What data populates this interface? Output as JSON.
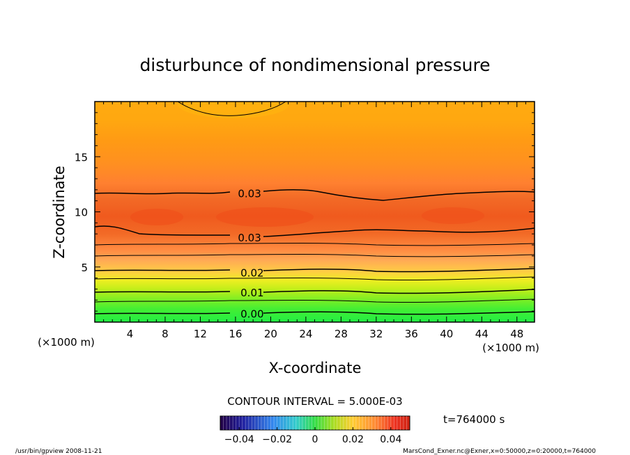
{
  "chart_data": {
    "type": "heatmap",
    "title": "disturbunce of nondimensional pressure",
    "xlabel": "X-coordinate",
    "ylabel": "Z-coordinate",
    "x_unit": "(×1000 m)",
    "y_unit": "(×1000 m)",
    "xlim": [
      0,
      50
    ],
    "ylim": [
      0,
      20
    ],
    "x_ticks": [
      4,
      8,
      12,
      16,
      20,
      24,
      28,
      32,
      36,
      40,
      44,
      48
    ],
    "y_ticks": [
      5,
      10,
      15
    ],
    "contour_interval_text": "CONTOUR INTERVAL = 5.000E-03",
    "contour_labels": [
      {
        "text": "0.03",
        "x": 17.2,
        "z": 11.7
      },
      {
        "text": "0.03",
        "x": 17.2,
        "z": 7.7
      },
      {
        "text": "0.02",
        "x": 17.5,
        "z": 4.5
      },
      {
        "text": "0.01",
        "x": 17.5,
        "z": 2.7
      },
      {
        "text": "0.00",
        "x": 17.5,
        "z": 0.8
      }
    ],
    "colorbar": {
      "range": [
        -0.05,
        0.05
      ],
      "tick_values": [
        -0.04,
        -0.02,
        0,
        0.02,
        0.04
      ],
      "tick_labels": [
        "−0.04",
        "−0.02",
        "0",
        "0.02",
        "0.04"
      ]
    },
    "time_label": "t=764000 s",
    "colors": {
      "high": "#f05a1e",
      "mid": "#ff9a10",
      "low": "#33ee33"
    }
  },
  "footer": {
    "left": "/usr/bin/gpview   2008-11-21",
    "right": "MarsCond_Exner.nc@Exner,x=0:50000,z=0:20000,t=764000"
  }
}
